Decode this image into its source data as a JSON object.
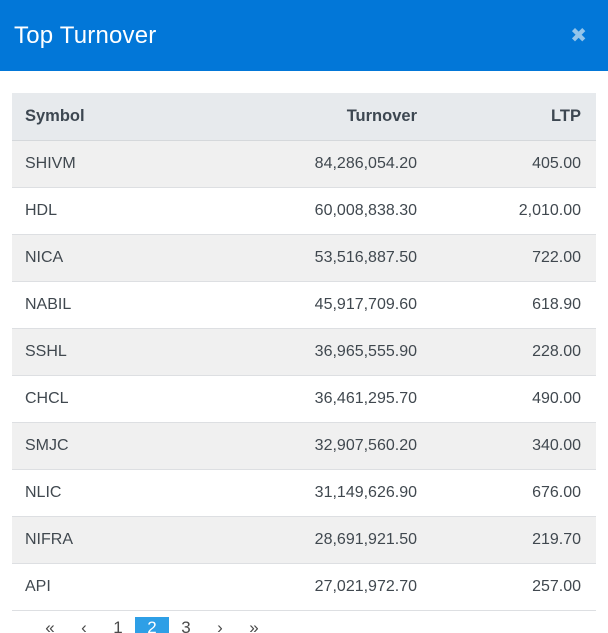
{
  "modal": {
    "title": "Top Turnover",
    "close_icon": "✖"
  },
  "colors": {
    "header_blue": "#0277d8",
    "close_icon_blue": "#93c4ea",
    "table_header_bg": "#e7eaed",
    "row_stripe_bg": "#f0f0f0",
    "pagination_active_blue": "#2e9fe6"
  },
  "table": {
    "columns": [
      "Symbol",
      "Turnover",
      "LTP"
    ],
    "rows": [
      {
        "symbol": "SHIVM",
        "turnover": "84,286,054.20",
        "ltp": "405.00"
      },
      {
        "symbol": "HDL",
        "turnover": "60,008,838.30",
        "ltp": "2,010.00"
      },
      {
        "symbol": "NICA",
        "turnover": "53,516,887.50",
        "ltp": "722.00"
      },
      {
        "symbol": "NABIL",
        "turnover": "45,917,709.60",
        "ltp": "618.90"
      },
      {
        "symbol": "SSHL",
        "turnover": "36,965,555.90",
        "ltp": "228.00"
      },
      {
        "symbol": "CHCL",
        "turnover": "36,461,295.70",
        "ltp": "490.00"
      },
      {
        "symbol": "SMJC",
        "turnover": "32,907,560.20",
        "ltp": "340.00"
      },
      {
        "symbol": "NLIC",
        "turnover": "31,149,626.90",
        "ltp": "676.00"
      },
      {
        "symbol": "NIFRA",
        "turnover": "28,691,921.50",
        "ltp": "219.70"
      },
      {
        "symbol": "API",
        "turnover": "27,021,972.70",
        "ltp": "257.00"
      }
    ]
  },
  "pagination": {
    "items": [
      {
        "name": "first",
        "label": "«",
        "active": false
      },
      {
        "name": "previous",
        "label": "‹",
        "active": false
      },
      {
        "name": "page-1",
        "label": "1",
        "active": false
      },
      {
        "name": "page-2",
        "label": "2",
        "active": true
      },
      {
        "name": "page-3",
        "label": "3",
        "active": false
      },
      {
        "name": "next",
        "label": "›",
        "active": false
      },
      {
        "name": "last",
        "label": "»",
        "active": false
      }
    ]
  }
}
